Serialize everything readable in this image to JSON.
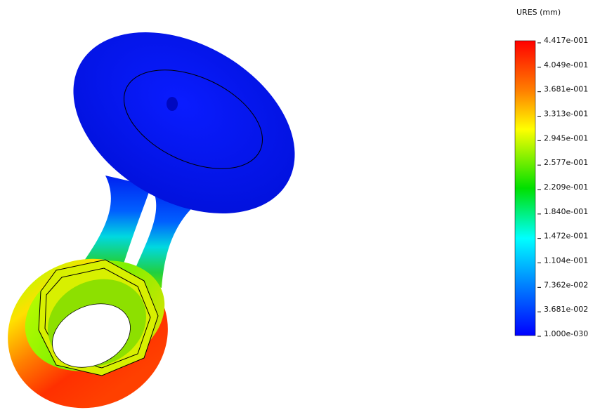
{
  "legend": {
    "title": "URES (mm)",
    "labels": [
      "4.417e-001",
      "4.049e-001",
      "3.681e-001",
      "3.313e-001",
      "2.945e-001",
      "2.577e-001",
      "2.209e-001",
      "1.840e-001",
      "1.472e-001",
      "1.104e-001",
      "7.362e-002",
      "3.681e-002",
      "1.000e-030"
    ]
  }
}
